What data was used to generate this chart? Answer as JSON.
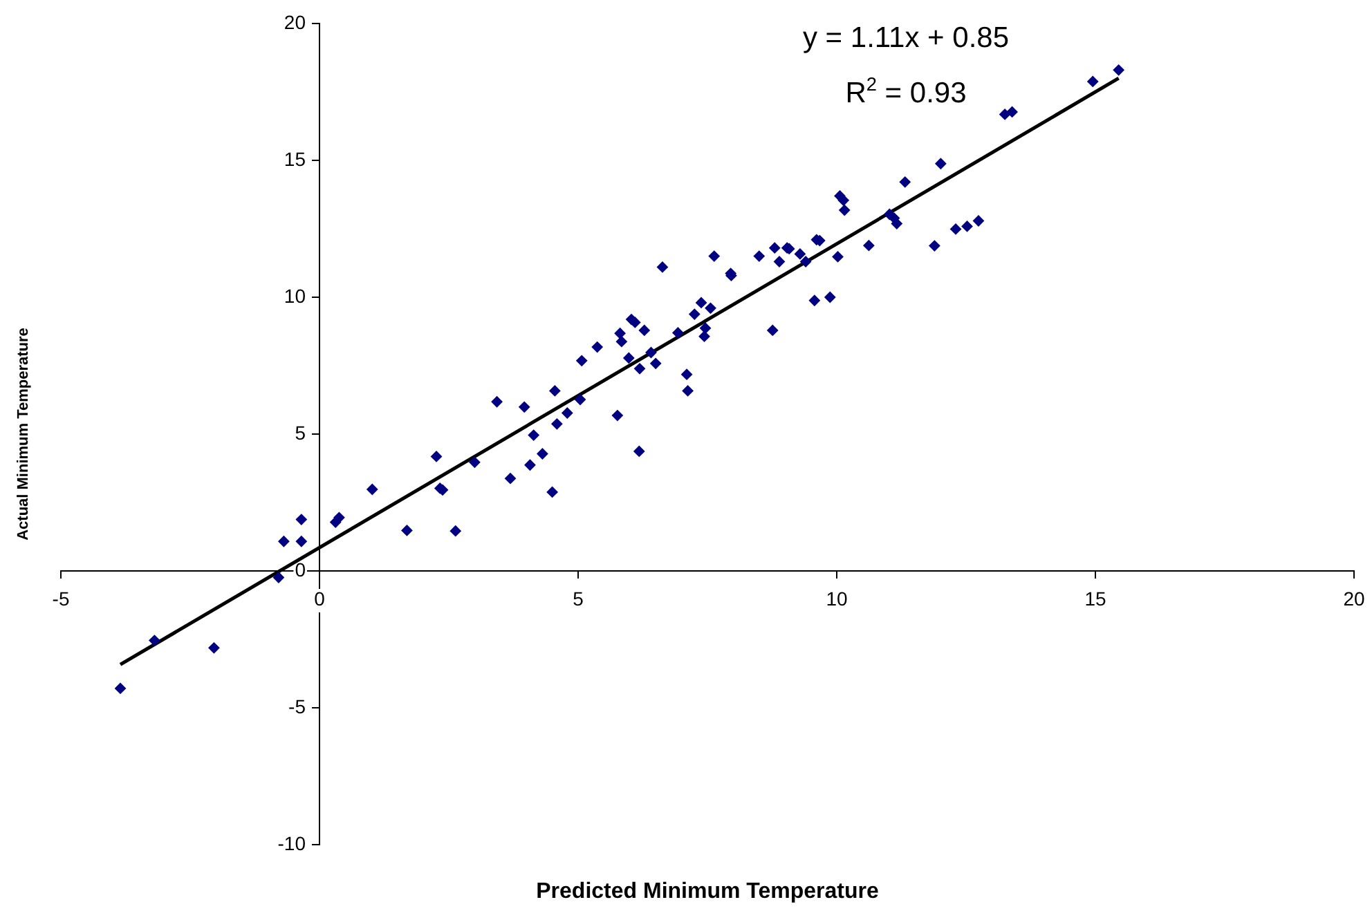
{
  "chart_data": {
    "type": "scatter",
    "xlabel": "Predicted Minimum Temperature",
    "ylabel": "Actual Minimum Temperature",
    "annotations": [
      "y = 1.11x + 0.85",
      "R$^{2}$ = 0.93"
    ],
    "xlim": [
      -5,
      20
    ],
    "ylim": [
      -10,
      20
    ],
    "xticks": [
      -5,
      0,
      5,
      10,
      15,
      20
    ],
    "yticks": [
      -10,
      -5,
      0,
      5,
      10,
      15,
      20
    ],
    "marker": "diamond",
    "series": [
      {
        "type": "scatter",
        "color": "#000080",
        "x": [
          -3.85,
          -3.19,
          -2.04,
          -0.79,
          -0.69,
          -0.35,
          -0.35,
          0.31,
          0.38,
          1.02,
          1.69,
          2.26,
          2.33,
          2.38,
          2.63,
          3.0,
          3.43,
          3.69,
          3.96,
          4.07,
          4.14,
          4.31,
          4.5,
          4.55,
          4.59,
          4.79,
          5.04,
          5.07,
          5.37,
          5.76,
          5.81,
          5.84,
          5.98,
          6.03,
          6.1,
          6.19,
          6.28,
          6.41,
          6.5,
          6.18,
          6.63,
          6.93,
          7.1,
          7.12,
          7.25,
          7.38,
          7.56,
          7.46,
          7.44,
          7.63,
          7.95,
          7.96,
          8.5,
          8.76,
          8.8,
          8.89,
          9.04,
          9.08,
          9.29,
          9.4,
          9.57,
          9.61,
          9.67,
          9.87,
          10.02,
          10.06,
          10.13,
          10.15,
          10.62,
          11.02,
          11.11,
          11.16,
          11.32,
          11.89,
          12.01,
          12.3,
          12.52,
          12.74,
          13.25,
          13.39,
          14.95,
          15.45
        ],
        "values": [
          -4.29,
          -2.54,
          -2.81,
          -0.24,
          1.08,
          1.08,
          1.88,
          1.78,
          1.95,
          2.98,
          1.48,
          4.18,
          3.02,
          2.96,
          1.46,
          3.97,
          6.18,
          3.38,
          5.99,
          3.87,
          4.96,
          4.28,
          2.88,
          6.58,
          5.37,
          5.77,
          6.26,
          7.68,
          8.18,
          5.68,
          8.68,
          8.38,
          7.78,
          9.19,
          9.08,
          7.39,
          8.79,
          7.98,
          7.58,
          4.37,
          11.1,
          8.7,
          7.18,
          6.58,
          9.38,
          9.8,
          9.6,
          8.87,
          8.57,
          11.5,
          10.87,
          10.79,
          11.5,
          8.79,
          11.8,
          11.3,
          11.8,
          11.77,
          11.58,
          11.3,
          9.88,
          12.1,
          12.07,
          10.0,
          11.48,
          13.7,
          13.54,
          13.18,
          11.89,
          13.03,
          12.89,
          12.69,
          14.21,
          11.88,
          14.88,
          12.49,
          12.59,
          12.79,
          16.68,
          16.77,
          17.88,
          18.3
        ]
      },
      {
        "type": "line",
        "color": "#000000",
        "marker": "none",
        "line_style": "solid",
        "x": [
          -3.85,
          15.45
        ],
        "values": [
          -3.42,
          18.0
        ]
      }
    ]
  }
}
